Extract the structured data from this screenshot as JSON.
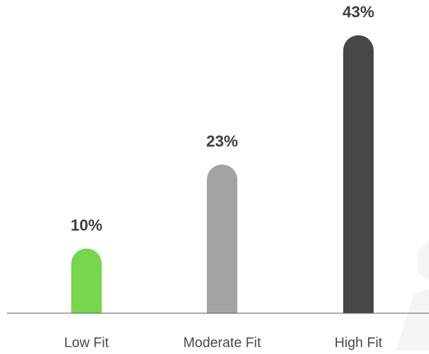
{
  "chart_data": {
    "type": "bar",
    "categories": [
      "Low Fit",
      "Moderate Fit",
      "High Fit"
    ],
    "values": [
      10,
      23,
      43
    ],
    "value_labels": [
      "10%",
      "23%",
      "43%"
    ],
    "colors": [
      "#77d64d",
      "#a3a3a3",
      "#474747"
    ],
    "ylim": [
      0,
      43
    ],
    "grid": false,
    "legend": "none"
  }
}
